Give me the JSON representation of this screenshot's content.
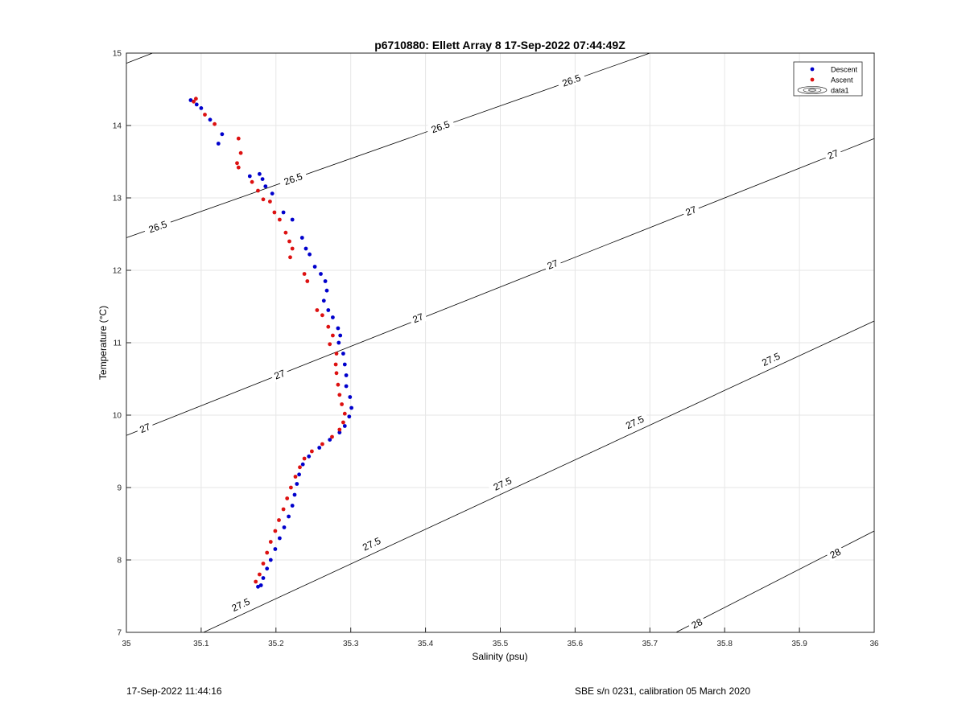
{
  "chart_data": {
    "type": "scatter",
    "title": "p6710880: Ellett Array 8 17-Sep-2022 07:44:49Z",
    "xlabel": "Salinity (psu)",
    "ylabel": "Temperature (°C)",
    "xlim": [
      35,
      36
    ],
    "ylim": [
      7,
      15
    ],
    "xticks": [
      "35",
      "35.1",
      "35.2",
      "35.3",
      "35.4",
      "35.5",
      "35.6",
      "35.7",
      "35.8",
      "35.9",
      "36"
    ],
    "yticks": [
      "7",
      "8",
      "9",
      "10",
      "11",
      "12",
      "13",
      "14",
      "15"
    ],
    "grid": true,
    "legend_position": "top-right",
    "legend": [
      "Descent",
      "Ascent",
      "data1"
    ],
    "colors": {
      "descent": "#0000cc",
      "ascent": "#dd1111",
      "contour": "#000000",
      "grid": "#e6e6e6"
    },
    "series": [
      {
        "name": "Descent",
        "points": [
          [
            35.086,
            14.35
          ],
          [
            35.094,
            14.29
          ],
          [
            35.1,
            14.24
          ],
          [
            35.112,
            14.08
          ],
          [
            35.128,
            13.88
          ],
          [
            35.123,
            13.75
          ],
          [
            35.165,
            13.3
          ],
          [
            35.178,
            13.33
          ],
          [
            35.182,
            13.26
          ],
          [
            35.186,
            13.16
          ],
          [
            35.195,
            13.06
          ],
          [
            35.21,
            12.8
          ],
          [
            35.222,
            12.7
          ],
          [
            35.235,
            12.45
          ],
          [
            35.24,
            12.3
          ],
          [
            35.245,
            12.22
          ],
          [
            35.252,
            12.05
          ],
          [
            35.26,
            11.95
          ],
          [
            35.266,
            11.85
          ],
          [
            35.268,
            11.72
          ],
          [
            35.264,
            11.58
          ],
          [
            35.27,
            11.45
          ],
          [
            35.276,
            11.35
          ],
          [
            35.283,
            11.2
          ],
          [
            35.286,
            11.1
          ],
          [
            35.284,
            11.0
          ],
          [
            35.29,
            10.85
          ],
          [
            35.292,
            10.7
          ],
          [
            35.294,
            10.55
          ],
          [
            35.294,
            10.4
          ],
          [
            35.299,
            10.25
          ],
          [
            35.301,
            10.1
          ],
          [
            35.298,
            9.98
          ],
          [
            35.292,
            9.85
          ],
          [
            35.285,
            9.76
          ],
          [
            35.272,
            9.66
          ],
          [
            35.258,
            9.55
          ],
          [
            35.244,
            9.43
          ],
          [
            35.236,
            9.32
          ],
          [
            35.231,
            9.18
          ],
          [
            35.228,
            9.05
          ],
          [
            35.225,
            8.9
          ],
          [
            35.222,
            8.75
          ],
          [
            35.217,
            8.6
          ],
          [
            35.211,
            8.45
          ],
          [
            35.205,
            8.3
          ],
          [
            35.199,
            8.15
          ],
          [
            35.193,
            8.0
          ],
          [
            35.188,
            7.88
          ],
          [
            35.183,
            7.75
          ],
          [
            35.18,
            7.65
          ],
          [
            35.176,
            7.63
          ]
        ]
      },
      {
        "name": "Ascent",
        "points": [
          [
            35.093,
            14.37
          ],
          [
            35.09,
            14.33
          ],
          [
            35.105,
            14.15
          ],
          [
            35.118,
            14.02
          ],
          [
            35.15,
            13.82
          ],
          [
            35.153,
            13.62
          ],
          [
            35.148,
            13.48
          ],
          [
            35.15,
            13.42
          ],
          [
            35.168,
            13.22
          ],
          [
            35.176,
            13.1
          ],
          [
            35.183,
            12.98
          ],
          [
            35.192,
            12.95
          ],
          [
            35.198,
            12.8
          ],
          [
            35.205,
            12.7
          ],
          [
            35.213,
            12.52
          ],
          [
            35.218,
            12.4
          ],
          [
            35.222,
            12.3
          ],
          [
            35.219,
            12.18
          ],
          [
            35.238,
            11.95
          ],
          [
            35.242,
            11.85
          ],
          [
            35.255,
            11.45
          ],
          [
            35.262,
            11.38
          ],
          [
            35.27,
            11.22
          ],
          [
            35.276,
            11.1
          ],
          [
            35.272,
            10.98
          ],
          [
            35.281,
            10.85
          ],
          [
            35.28,
            10.7
          ],
          [
            35.281,
            10.58
          ],
          [
            35.283,
            10.42
          ],
          [
            35.285,
            10.28
          ],
          [
            35.288,
            10.15
          ],
          [
            35.292,
            10.02
          ],
          [
            35.29,
            9.9
          ],
          [
            35.285,
            9.8
          ],
          [
            35.275,
            9.7
          ],
          [
            35.262,
            9.6
          ],
          [
            35.248,
            9.5
          ],
          [
            35.238,
            9.4
          ],
          [
            35.232,
            9.28
          ],
          [
            35.226,
            9.15
          ],
          [
            35.22,
            9.0
          ],
          [
            35.215,
            8.85
          ],
          [
            35.21,
            8.7
          ],
          [
            35.204,
            8.55
          ],
          [
            35.199,
            8.4
          ],
          [
            35.193,
            8.25
          ],
          [
            35.188,
            8.1
          ],
          [
            35.183,
            7.95
          ],
          [
            35.178,
            7.8
          ],
          [
            35.173,
            7.7
          ]
        ]
      }
    ],
    "contours": [
      {
        "level": "26.5",
        "lines": [
          [
            [
              35,
              12.45
            ],
            [
              35.7,
              15.0
            ]
          ],
          [
            [
              35,
              14.86
            ],
            [
              35.035,
              15.0
            ]
          ]
        ],
        "labels": [
          [
            35.042,
            12.6
          ],
          [
            35.223,
            13.26
          ],
          [
            35.42,
            13.98
          ],
          [
            35.595,
            14.62
          ]
        ]
      },
      {
        "level": "27",
        "lines": [
          [
            [
              35,
              9.72
            ],
            [
              36,
              13.82
            ]
          ]
        ],
        "labels": [
          [
            35.025,
            9.82
          ],
          [
            35.205,
            10.56
          ],
          [
            35.39,
            11.34
          ],
          [
            35.57,
            12.08
          ],
          [
            35.755,
            12.82
          ],
          [
            35.945,
            13.6
          ]
        ]
      },
      {
        "level": "27.5",
        "lines": [
          [
            [
              35.103,
              7.0
            ],
            [
              36,
              11.3
            ]
          ]
        ],
        "labels": [
          [
            35.153,
            7.38
          ],
          [
            35.328,
            8.22
          ],
          [
            35.503,
            9.05
          ],
          [
            35.68,
            9.9
          ],
          [
            35.862,
            10.77
          ]
        ]
      },
      {
        "level": "28",
        "lines": [
          [
            [
              35.735,
              7.0
            ],
            [
              36,
              8.4
            ]
          ]
        ],
        "labels": [
          [
            35.763,
            7.12
          ],
          [
            35.948,
            8.09
          ]
        ]
      }
    ]
  },
  "footer": {
    "timestamp": "17-Sep-2022 11:44:16",
    "calibration": "SBE s/n 0231, calibration 05 March 2020"
  }
}
